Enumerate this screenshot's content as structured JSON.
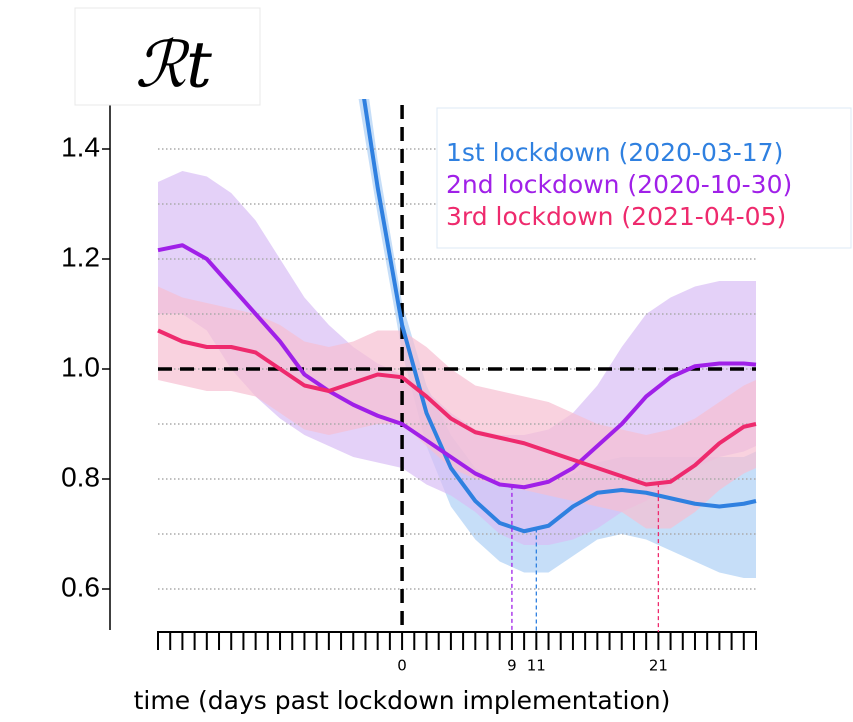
{
  "chart_data": {
    "type": "line",
    "title": "ℛt",
    "x_label": "time (days past lockdown implementation)",
    "x": [
      -20,
      -18,
      -16,
      -14,
      -12,
      -10,
      -8,
      -6,
      -4,
      -2,
      0,
      2,
      4,
      6,
      8,
      10,
      12,
      14,
      16,
      18,
      20,
      22,
      24,
      26,
      28,
      29
    ],
    "xlim": [
      -20,
      29
    ],
    "xticks": [
      0,
      9,
      11,
      21
    ],
    "xminor_ticks": [
      -20,
      -19,
      -18,
      -17,
      -16,
      -15,
      -14,
      -13,
      -12,
      -11,
      -10,
      -9,
      -8,
      -7,
      -6,
      -5,
      -4,
      -3,
      -2,
      -1,
      0,
      1,
      2,
      3,
      4,
      5,
      6,
      7,
      8,
      9,
      10,
      11,
      12,
      13,
      14,
      15,
      16,
      17,
      18,
      19,
      20,
      21,
      22,
      23,
      24,
      25,
      26,
      27,
      28,
      29
    ],
    "ylim": [
      0.53,
      1.49
    ],
    "yticks": [
      {
        "value": 0.6,
        "label": "0.6"
      },
      {
        "value": 0.8,
        "label": "0.8"
      },
      {
        "value": 1.0,
        "label": "1.0"
      },
      {
        "value": 1.2,
        "label": "1.2"
      },
      {
        "value": 1.4,
        "label": "1.4"
      }
    ],
    "grid_lines": [
      0.6,
      0.7,
      0.8,
      0.9,
      1.0,
      1.1,
      1.2,
      1.3,
      1.4
    ],
    "reference_x": 0,
    "reference_y": 1.0,
    "legend": "upper right",
    "series": [
      {
        "name": "1st lockdown (2020-03-17)",
        "color": "#2f80e0",
        "band_color": "#aed0f5",
        "min_day": 11,
        "values": [
          null,
          null,
          null,
          null,
          null,
          null,
          null,
          null,
          1.62,
          1.33,
          1.08,
          0.92,
          0.82,
          0.76,
          0.72,
          0.705,
          0.715,
          0.75,
          0.775,
          0.78,
          0.775,
          0.765,
          0.755,
          0.75,
          0.755,
          0.76
        ],
        "lower": [
          null,
          null,
          null,
          null,
          null,
          null,
          null,
          null,
          1.55,
          1.28,
          1.03,
          0.86,
          0.75,
          0.69,
          0.65,
          0.63,
          0.63,
          0.66,
          0.69,
          0.7,
          0.69,
          0.67,
          0.65,
          0.63,
          0.62,
          0.62
        ],
        "upper": [
          null,
          null,
          null,
          null,
          null,
          null,
          null,
          null,
          1.7,
          1.38,
          1.12,
          0.97,
          0.88,
          0.82,
          0.79,
          0.78,
          0.79,
          0.81,
          0.83,
          0.84,
          0.84,
          0.84,
          0.84,
          0.84,
          0.84,
          0.85
        ]
      },
      {
        "name": "2nd lockdown (2020-10-30)",
        "color": "#a020e8",
        "band_color": "#d9bdf5",
        "min_day": 9,
        "values": [
          1.216,
          1.225,
          1.2,
          1.15,
          1.1,
          1.05,
          0.99,
          0.96,
          0.935,
          0.915,
          0.9,
          0.87,
          0.84,
          0.81,
          0.79,
          0.785,
          0.795,
          0.82,
          0.86,
          0.9,
          0.95,
          0.985,
          1.005,
          1.01,
          1.01,
          1.008
        ],
        "lower": [
          1.1,
          1.1,
          1.07,
          1.0,
          0.95,
          0.91,
          0.88,
          0.86,
          0.84,
          0.83,
          0.82,
          0.79,
          0.77,
          0.74,
          0.7,
          0.68,
          0.68,
          0.69,
          0.71,
          0.74,
          0.76,
          0.79,
          0.82,
          0.84,
          0.85,
          0.86
        ],
        "upper": [
          1.34,
          1.36,
          1.35,
          1.32,
          1.27,
          1.2,
          1.13,
          1.08,
          1.04,
          1.01,
          0.99,
          0.96,
          0.92,
          0.89,
          0.88,
          0.88,
          0.89,
          0.92,
          0.97,
          1.04,
          1.1,
          1.13,
          1.15,
          1.16,
          1.16,
          1.16
        ]
      },
      {
        "name": "3rd lockdown (2021-04-05)",
        "color": "#ee2a6d",
        "band_color": "#f7bfd1",
        "min_day": 21,
        "values": [
          1.07,
          1.05,
          1.04,
          1.04,
          1.03,
          1.0,
          0.97,
          0.96,
          0.975,
          0.99,
          0.985,
          0.95,
          0.91,
          0.885,
          0.875,
          0.865,
          0.85,
          0.835,
          0.82,
          0.805,
          0.79,
          0.795,
          0.825,
          0.865,
          0.895,
          0.9
        ],
        "lower": [
          0.98,
          0.97,
          0.96,
          0.96,
          0.95,
          0.92,
          0.89,
          0.88,
          0.89,
          0.9,
          0.9,
          0.86,
          0.82,
          0.8,
          0.79,
          0.78,
          0.77,
          0.76,
          0.75,
          0.74,
          0.71,
          0.71,
          0.74,
          0.78,
          0.81,
          0.82
        ],
        "upper": [
          1.15,
          1.13,
          1.12,
          1.11,
          1.1,
          1.08,
          1.05,
          1.04,
          1.05,
          1.07,
          1.07,
          1.04,
          1.0,
          0.97,
          0.96,
          0.95,
          0.94,
          0.92,
          0.9,
          0.89,
          0.88,
          0.89,
          0.91,
          0.94,
          0.97,
          0.98
        ]
      }
    ]
  }
}
